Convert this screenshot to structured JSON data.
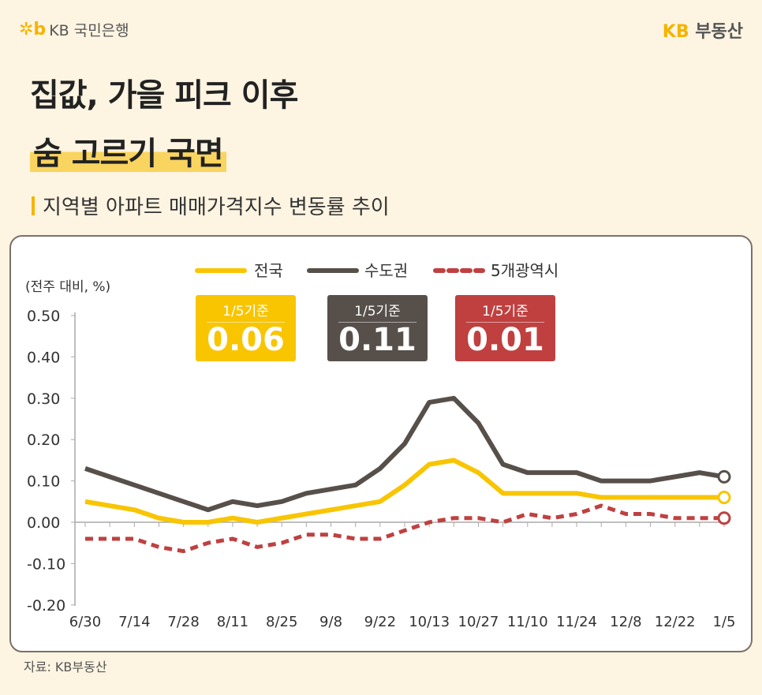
{
  "header": {
    "bank_logo": "KB 국민은행",
    "brand_logo_kb": "KB",
    "brand_logo_text": "부동산"
  },
  "title": {
    "line1": "집값, 가을 피크 이후",
    "line2": "숨 고르기 국면"
  },
  "subtitle": "지역별 아파트 매매가격지수 변동률 추이",
  "source": "자료: KB부동산",
  "colors": {
    "background": "#fdf4e2",
    "national": "#f8c500",
    "capital": "#57504a",
    "metro": "#c04040",
    "highlight": "#f9d560"
  },
  "badges": [
    {
      "label": "1/5기준",
      "value": "0.06",
      "color": "#f8c500"
    },
    {
      "label": "1/5기준",
      "value": "0.11",
      "color": "#57504a"
    },
    {
      "label": "1/5기준",
      "value": "0.01",
      "color": "#c04040"
    }
  ],
  "chart_data": {
    "type": "line",
    "ylabel": "(전주 대비, %)",
    "ylim": [
      -0.2,
      0.5
    ],
    "yticks": [
      "0.50",
      "0.40",
      "0.30",
      "0.20",
      "0.10",
      "0.00",
      "-0.10",
      "-0.20"
    ],
    "ytick_values": [
      0.5,
      0.4,
      0.3,
      0.2,
      0.1,
      0,
      -0.1,
      -0.2
    ],
    "x": [
      "6/30",
      "7/7",
      "7/14",
      "7/21",
      "7/28",
      "8/4",
      "8/11",
      "8/18",
      "8/25",
      "9/1",
      "9/8",
      "9/15",
      "9/22",
      "9/29",
      "10/13",
      "10/20",
      "10/27",
      "11/3",
      "11/10",
      "11/17",
      "11/24",
      "12/1",
      "12/8",
      "12/15",
      "12/22",
      "12/29",
      "1/5"
    ],
    "xticks": [
      "6/30",
      "7/14",
      "7/28",
      "8/11",
      "8/25",
      "9/8",
      "9/22",
      "10/13",
      "10/27",
      "11/10",
      "11/24",
      "12/8",
      "12/22",
      "1/5"
    ],
    "grid": false,
    "legend_position": "top-center",
    "series": [
      {
        "name": "전국",
        "style": "solid",
        "color": "#f8c500",
        "values": [
          0.05,
          0.04,
          0.03,
          0.01,
          0.0,
          0.0,
          0.01,
          0.0,
          0.01,
          0.02,
          0.03,
          0.04,
          0.05,
          0.09,
          0.14,
          0.15,
          0.12,
          0.07,
          0.07,
          0.07,
          0.07,
          0.06,
          0.06,
          0.06,
          0.06,
          0.06,
          0.06
        ]
      },
      {
        "name": "수도권",
        "style": "solid",
        "color": "#57504a",
        "values": [
          0.13,
          0.11,
          0.09,
          0.07,
          0.05,
          0.03,
          0.05,
          0.04,
          0.05,
          0.07,
          0.08,
          0.09,
          0.13,
          0.19,
          0.29,
          0.3,
          0.24,
          0.14,
          0.12,
          0.12,
          0.12,
          0.1,
          0.1,
          0.1,
          0.11,
          0.12,
          0.11
        ]
      },
      {
        "name": "5개광역시",
        "style": "dashed",
        "color": "#c04040",
        "values": [
          -0.04,
          -0.04,
          -0.04,
          -0.06,
          -0.07,
          -0.05,
          -0.04,
          -0.06,
          -0.05,
          -0.03,
          -0.03,
          -0.04,
          -0.04,
          -0.02,
          0.0,
          0.01,
          0.01,
          0.0,
          0.02,
          0.01,
          0.02,
          0.04,
          0.02,
          0.02,
          0.01,
          0.01,
          0.01
        ]
      }
    ]
  }
}
